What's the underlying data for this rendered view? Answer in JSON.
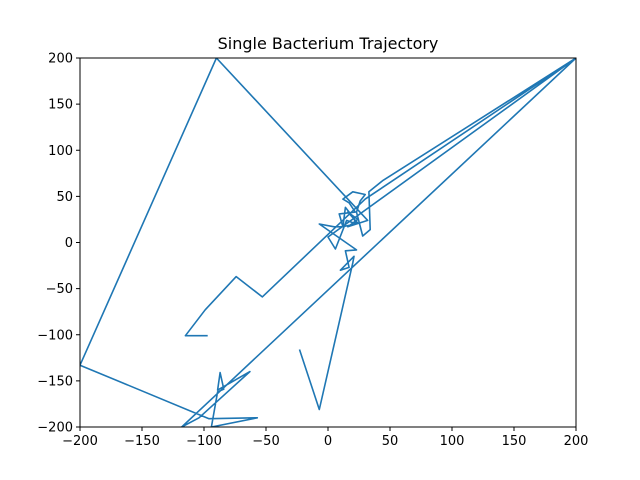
{
  "chart_data": {
    "type": "line",
    "title": "Single Bacterium Trajectory",
    "xlabel": "",
    "ylabel": "",
    "xlim": [
      -200,
      200
    ],
    "ylim": [
      -200,
      200
    ],
    "xticks": [
      -200,
      -150,
      -100,
      -50,
      0,
      50,
      100,
      150,
      200
    ],
    "yticks": [
      -200,
      -150,
      -100,
      -50,
      0,
      50,
      100,
      150,
      200
    ],
    "grid": false,
    "colors": {
      "line": "#1f77b4",
      "frame": "#000000"
    },
    "series": [
      {
        "x": [
          -23,
          -7,
          20,
          21,
          10,
          17,
          14,
          23,
          -7,
          5,
          11,
          23,
          20,
          14,
          12,
          9,
          22,
          17,
          12,
          20,
          30,
          26,
          23,
          28,
          34,
          33,
          44,
          200,
          -118,
          -104,
          -63,
          -89,
          -87,
          -84,
          -89,
          -94,
          -57,
          -96,
          -200,
          -90,
          32,
          16,
          24,
          16,
          24,
          21,
          15,
          6,
          0,
          200,
          30,
          -53,
          -74,
          -99,
          -115,
          -97
        ],
        "y": [
          -116,
          -181,
          -22,
          -15,
          -30,
          -27,
          -9,
          -8,
          20,
          17,
          17,
          20,
          28,
          38,
          17,
          31,
          33,
          43,
          47,
          55,
          52,
          45,
          33,
          7,
          14,
          55,
          67,
          200,
          -200,
          -190,
          -140,
          -160,
          -141,
          -159,
          -162,
          -200,
          -190,
          -191,
          -133,
          200,
          24,
          17,
          25,
          33,
          21,
          21,
          24,
          -7,
          6,
          200,
          47,
          -59,
          -37,
          -73,
          -101,
          -101
        ]
      }
    ]
  }
}
